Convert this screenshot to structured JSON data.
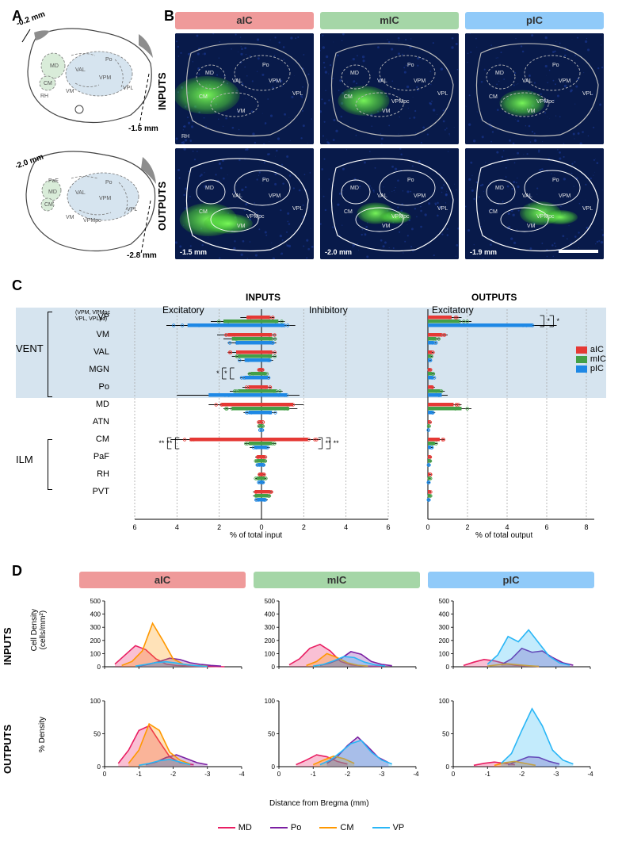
{
  "colors": {
    "aIC": "#e53935",
    "mIC": "#43a047",
    "pIC": "#1e88e5",
    "aIC_header": "#ef9a9a",
    "mIC_header": "#a5d6a7",
    "pIC_header": "#90caf9",
    "MD": "#e91e63",
    "Po": "#7b1fa2",
    "CM": "#ff9800",
    "VP": "#29b6f6",
    "micro_bg": "#081a4a",
    "vent_band": "#d6e4ef",
    "brain_green": "#d9ecd9",
    "brain_blue": "#d6e4ef",
    "grid": "#aaaaaa",
    "axis": "#000000"
  },
  "panelA": {
    "label": "A",
    "coords": [
      "-0.2 mm",
      "-1.5 mm",
      "-2.0 mm",
      "-2.8 mm"
    ],
    "regions_top": [
      "MD",
      "CM",
      "RH",
      "VAL",
      "Po",
      "VPM",
      "VPL",
      "VM"
    ],
    "regions_bot": [
      "PaF",
      "MD",
      "CM",
      "Po",
      "VAL",
      "VPM",
      "VPL",
      "VPMpc",
      "VM"
    ]
  },
  "panelB": {
    "label": "B",
    "rows": [
      "INPUTS",
      "OUTPUTS"
    ],
    "cols": [
      "aIC",
      "mIC",
      "pIC"
    ],
    "bregma_outputs": [
      "-1.5 mm",
      "-2.0 mm",
      "-1.9 mm"
    ],
    "overlay_regions": [
      "MD",
      "Po",
      "CM",
      "VAL",
      "VPM",
      "VPL",
      "VPMpc",
      "VM",
      "RH"
    ]
  },
  "panelC": {
    "label": "C",
    "groups": [
      {
        "name": "VENT",
        "span": [
          0,
          4
        ]
      },
      {
        "name": "ILM",
        "span": [
          7,
          9
        ]
      }
    ],
    "regions": [
      {
        "label": "VP",
        "note": "(VPM, VPMpc\nVPL, VPLpc)"
      },
      {
        "label": "VM"
      },
      {
        "label": "VAL"
      },
      {
        "label": "MGN"
      },
      {
        "label": "Po"
      },
      {
        "label": "MD"
      },
      {
        "label": "ATN"
      },
      {
        "label": "CM"
      },
      {
        "label": "PaF"
      },
      {
        "label": "RH"
      },
      {
        "label": "PVT"
      }
    ],
    "inputs": {
      "headers": [
        "Excitatory",
        "Inhibitory"
      ],
      "xlabel": "% of total input",
      "xmax": 6,
      "xstep": 2,
      "excitatory": {
        "aIC": [
          0.7,
          1.6,
          1.2,
          0.1,
          0.6,
          1.9,
          0.1,
          3.4,
          0.2,
          0.1,
          0.3
        ],
        "mIC": [
          1.8,
          1.4,
          1.1,
          0.5,
          1.1,
          1.4,
          0.1,
          0.6,
          0.2,
          0.2,
          0.3
        ],
        "pIC": [
          3.5,
          1.2,
          0.8,
          0.8,
          2.5,
          0.6,
          0.05,
          0.35,
          0.15,
          0.1,
          0.2
        ],
        "err": {
          "aIC": [
            0.3,
            0.5,
            0.4,
            0.05,
            0.3,
            0.6,
            0.05,
            0.9,
            0.1,
            0.05,
            0.1
          ],
          "mIC": [
            0.6,
            0.4,
            0.3,
            0.15,
            0.4,
            0.4,
            0.05,
            0.2,
            0.1,
            0.1,
            0.1
          ],
          "pIC": [
            1.0,
            0.4,
            0.3,
            0.2,
            1.5,
            0.25,
            0.03,
            0.2,
            0.08,
            0.05,
            0.1
          ]
        }
      },
      "inhibitory": {
        "aIC": [
          0.4,
          0.5,
          0.5,
          0.05,
          0.3,
          1.5,
          0.05,
          2.2,
          0.15,
          0.1,
          0.4
        ],
        "mIC": [
          0.8,
          0.5,
          0.5,
          0.2,
          0.7,
          1.3,
          0.05,
          0.5,
          0.15,
          0.15,
          0.3
        ],
        "pIC": [
          1.1,
          0.5,
          0.4,
          0.3,
          1.2,
          0.5,
          0.03,
          0.25,
          0.1,
          0.1,
          0.2
        ],
        "err": {
          "aIC": [
            0.2,
            0.2,
            0.2,
            0.03,
            0.15,
            0.5,
            0.03,
            0.6,
            0.08,
            0.05,
            0.15
          ],
          "mIC": [
            0.3,
            0.2,
            0.2,
            0.08,
            0.3,
            0.4,
            0.03,
            0.2,
            0.08,
            0.08,
            0.1
          ],
          "pIC": [
            0.5,
            0.2,
            0.15,
            0.1,
            0.6,
            0.2,
            0.02,
            0.15,
            0.05,
            0.05,
            0.1
          ]
        }
      },
      "sig": [
        {
          "region_idx": 3,
          "side": "exc",
          "pairs": [
            [
              "mIC",
              "aIC",
              "*"
            ],
            [
              "pIC",
              "aIC",
              "*"
            ]
          ]
        },
        {
          "region_idx": 7,
          "side": "exc",
          "pairs": [
            [
              "aIC",
              "mIC",
              "**"
            ],
            [
              "aIC",
              "pIC",
              "**"
            ]
          ]
        },
        {
          "region_idx": 7,
          "side": "inh",
          "pairs": [
            [
              "aIC",
              "mIC",
              "**"
            ],
            [
              "aIC",
              "pIC",
              "**"
            ]
          ]
        }
      ]
    },
    "outputs": {
      "header": "Excitatory",
      "xlabel": "% of total output",
      "xmax": 8,
      "xstep": 2,
      "values": {
        "aIC": [
          1.2,
          0.7,
          0.2,
          0.1,
          0.25,
          1.3,
          0.1,
          0.6,
          0.1,
          0.1,
          0.1
        ],
        "mIC": [
          1.6,
          0.4,
          0.15,
          0.2,
          0.6,
          1.7,
          0.05,
          0.35,
          0.1,
          0.1,
          0.1
        ],
        "pIC": [
          5.3,
          0.3,
          0.1,
          0.25,
          0.7,
          0.25,
          0.03,
          0.15,
          0.05,
          0.05,
          0.05
        ]
      },
      "err": {
        "aIC": [
          0.5,
          0.3,
          0.1,
          0.05,
          0.1,
          0.4,
          0.05,
          0.25,
          0.05,
          0.05,
          0.05
        ],
        "mIC": [
          0.6,
          0.2,
          0.08,
          0.1,
          0.25,
          0.5,
          0.03,
          0.15,
          0.05,
          0.05,
          0.05
        ],
        "pIC": [
          1.2,
          0.15,
          0.05,
          0.1,
          0.3,
          0.12,
          0.02,
          0.1,
          0.03,
          0.03,
          0.03
        ]
      },
      "sig": [
        {
          "region_idx": 0,
          "pairs": [
            [
              "pIC",
              "aIC",
              "*"
            ],
            [
              "pIC",
              "mIC",
              "*"
            ]
          ]
        }
      ]
    },
    "legend": [
      "aIC",
      "mIC",
      "pIC"
    ]
  },
  "panelD": {
    "label": "D",
    "rows": [
      "INPUTS",
      "OUTPUTS"
    ],
    "cols": [
      "aIC",
      "mIC",
      "pIC"
    ],
    "x": {
      "label": "Distance from Bregma (mm)",
      "min": 0,
      "max": -4,
      "step": -1
    },
    "y_inputs": {
      "label": "Cell Density\n(cells/mm²)",
      "max": 500,
      "step": 100
    },
    "y_outputs": {
      "label": "% Density",
      "max": 100,
      "step": 50
    },
    "series": [
      "MD",
      "Po",
      "CM",
      "VP"
    ],
    "inputs": {
      "aIC": {
        "MD": [
          [
            -0.3,
            20
          ],
          [
            -0.6,
            90
          ],
          [
            -0.9,
            160
          ],
          [
            -1.2,
            130
          ],
          [
            -1.5,
            60
          ],
          [
            -1.8,
            20
          ],
          [
            -2.1,
            10
          ],
          [
            -2.5,
            5
          ],
          [
            -3.0,
            3
          ],
          [
            -3.5,
            0
          ]
        ],
        "CM": [
          [
            -0.5,
            10
          ],
          [
            -0.8,
            40
          ],
          [
            -1.1,
            120
          ],
          [
            -1.4,
            330
          ],
          [
            -1.7,
            200
          ],
          [
            -2.0,
            60
          ],
          [
            -2.3,
            20
          ],
          [
            -2.6,
            10
          ],
          [
            -3.0,
            5
          ]
        ],
        "Po": [
          [
            -1.0,
            5
          ],
          [
            -1.3,
            20
          ],
          [
            -1.6,
            40
          ],
          [
            -1.9,
            65
          ],
          [
            -2.2,
            55
          ],
          [
            -2.5,
            30
          ],
          [
            -2.8,
            18
          ],
          [
            -3.1,
            10
          ],
          [
            -3.4,
            5
          ]
        ],
        "VP": [
          [
            -0.9,
            5
          ],
          [
            -1.2,
            18
          ],
          [
            -1.5,
            32
          ],
          [
            -1.8,
            38
          ],
          [
            -2.1,
            28
          ],
          [
            -2.4,
            15
          ],
          [
            -2.7,
            8
          ],
          [
            -3.0,
            3
          ]
        ]
      },
      "mIC": {
        "MD": [
          [
            -0.3,
            15
          ],
          [
            -0.6,
            60
          ],
          [
            -0.9,
            140
          ],
          [
            -1.2,
            170
          ],
          [
            -1.5,
            120
          ],
          [
            -1.8,
            40
          ],
          [
            -2.1,
            15
          ],
          [
            -2.5,
            5
          ],
          [
            -3.0,
            3
          ]
        ],
        "CM": [
          [
            -0.8,
            10
          ],
          [
            -1.1,
            40
          ],
          [
            -1.4,
            100
          ],
          [
            -1.7,
            70
          ],
          [
            -2.0,
            30
          ],
          [
            -2.3,
            12
          ],
          [
            -2.6,
            5
          ]
        ],
        "Po": [
          [
            -1.2,
            10
          ],
          [
            -1.5,
            30
          ],
          [
            -1.8,
            60
          ],
          [
            -2.1,
            115
          ],
          [
            -2.4,
            95
          ],
          [
            -2.7,
            40
          ],
          [
            -3.0,
            18
          ],
          [
            -3.3,
            8
          ]
        ],
        "VP": [
          [
            -1.0,
            5
          ],
          [
            -1.3,
            18
          ],
          [
            -1.6,
            45
          ],
          [
            -1.9,
            78
          ],
          [
            -2.2,
            70
          ],
          [
            -2.5,
            35
          ],
          [
            -2.8,
            15
          ],
          [
            -3.1,
            6
          ]
        ]
      },
      "pIC": {
        "MD": [
          [
            -0.3,
            10
          ],
          [
            -0.6,
            35
          ],
          [
            -0.9,
            55
          ],
          [
            -1.2,
            45
          ],
          [
            -1.5,
            25
          ],
          [
            -1.8,
            12
          ],
          [
            -2.1,
            6
          ],
          [
            -2.5,
            3
          ]
        ],
        "CM": [
          [
            -1.0,
            5
          ],
          [
            -1.3,
            15
          ],
          [
            -1.6,
            22
          ],
          [
            -1.9,
            15
          ],
          [
            -2.2,
            8
          ],
          [
            -2.5,
            3
          ]
        ],
        "Po": [
          [
            -1.4,
            15
          ],
          [
            -1.7,
            60
          ],
          [
            -2.0,
            140
          ],
          [
            -2.3,
            110
          ],
          [
            -2.6,
            120
          ],
          [
            -2.9,
            70
          ],
          [
            -3.2,
            30
          ],
          [
            -3.5,
            12
          ]
        ],
        "VP": [
          [
            -1.0,
            20
          ],
          [
            -1.3,
            90
          ],
          [
            -1.6,
            230
          ],
          [
            -1.9,
            190
          ],
          [
            -2.2,
            280
          ],
          [
            -2.5,
            180
          ],
          [
            -2.8,
            80
          ],
          [
            -3.1,
            30
          ],
          [
            -3.4,
            12
          ]
        ]
      }
    },
    "outputs": {
      "aIC": {
        "MD": [
          [
            -0.4,
            5
          ],
          [
            -0.7,
            25
          ],
          [
            -1.0,
            55
          ],
          [
            -1.3,
            62
          ],
          [
            -1.6,
            38
          ],
          [
            -1.9,
            15
          ],
          [
            -2.2,
            6
          ],
          [
            -2.6,
            3
          ]
        ],
        "CM": [
          [
            -0.7,
            5
          ],
          [
            -1.0,
            25
          ],
          [
            -1.3,
            65
          ],
          [
            -1.6,
            55
          ],
          [
            -1.9,
            22
          ],
          [
            -2.2,
            10
          ],
          [
            -2.5,
            4
          ]
        ],
        "Po": [
          [
            -1.2,
            3
          ],
          [
            -1.5,
            7
          ],
          [
            -1.8,
            14
          ],
          [
            -2.1,
            18
          ],
          [
            -2.4,
            12
          ],
          [
            -2.7,
            6
          ],
          [
            -3.0,
            3
          ]
        ],
        "VP": [
          [
            -1.0,
            2
          ],
          [
            -1.3,
            5
          ],
          [
            -1.6,
            9
          ],
          [
            -1.9,
            11
          ],
          [
            -2.2,
            7
          ],
          [
            -2.5,
            3
          ]
        ]
      },
      "mIC": {
        "MD": [
          [
            -0.5,
            3
          ],
          [
            -0.8,
            10
          ],
          [
            -1.1,
            18
          ],
          [
            -1.4,
            15
          ],
          [
            -1.7,
            8
          ],
          [
            -2.0,
            4
          ]
        ],
        "CM": [
          [
            -1.0,
            3
          ],
          [
            -1.3,
            10
          ],
          [
            -1.6,
            16
          ],
          [
            -1.9,
            12
          ],
          [
            -2.2,
            5
          ]
        ],
        "Po": [
          [
            -1.4,
            5
          ],
          [
            -1.7,
            15
          ],
          [
            -2.0,
            32
          ],
          [
            -2.3,
            45
          ],
          [
            -2.6,
            30
          ],
          [
            -2.9,
            14
          ],
          [
            -3.2,
            6
          ]
        ],
        "VP": [
          [
            -1.2,
            3
          ],
          [
            -1.5,
            10
          ],
          [
            -1.8,
            22
          ],
          [
            -2.1,
            35
          ],
          [
            -2.4,
            40
          ],
          [
            -2.7,
            22
          ],
          [
            -3.0,
            10
          ],
          [
            -3.3,
            4
          ]
        ]
      },
      "pIC": {
        "MD": [
          [
            -0.6,
            2
          ],
          [
            -0.9,
            5
          ],
          [
            -1.2,
            7
          ],
          [
            -1.5,
            5
          ],
          [
            -1.8,
            3
          ]
        ],
        "CM": [
          [
            -1.2,
            2
          ],
          [
            -1.5,
            6
          ],
          [
            -1.8,
            8
          ],
          [
            -2.1,
            5
          ],
          [
            -2.4,
            2
          ]
        ],
        "Po": [
          [
            -1.6,
            3
          ],
          [
            -1.9,
            9
          ],
          [
            -2.2,
            15
          ],
          [
            -2.5,
            14
          ],
          [
            -2.8,
            8
          ],
          [
            -3.1,
            4
          ]
        ],
        "VP": [
          [
            -1.4,
            5
          ],
          [
            -1.7,
            20
          ],
          [
            -2.0,
            55
          ],
          [
            -2.3,
            88
          ],
          [
            -2.6,
            62
          ],
          [
            -2.9,
            25
          ],
          [
            -3.2,
            10
          ],
          [
            -3.5,
            4
          ]
        ]
      }
    },
    "legend": [
      "MD",
      "Po",
      "CM",
      "VP"
    ]
  }
}
